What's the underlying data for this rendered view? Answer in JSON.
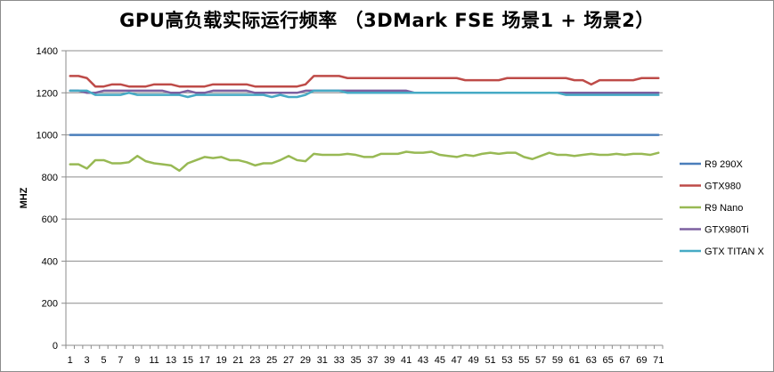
{
  "chart_data": {
    "type": "line",
    "title": "GPU高负载实际运行频率 （3DMark FSE 场景1 + 场景2）",
    "xlabel": "",
    "ylabel": "MHZ",
    "ylim": [
      0,
      1400
    ],
    "yticks": [
      0,
      200,
      400,
      600,
      800,
      1000,
      1200,
      1400
    ],
    "xlim": [
      1,
      71
    ],
    "xticks": [
      1,
      3,
      5,
      7,
      9,
      11,
      13,
      15,
      17,
      19,
      21,
      23,
      25,
      27,
      29,
      31,
      33,
      35,
      37,
      39,
      41,
      43,
      45,
      47,
      49,
      51,
      53,
      55,
      57,
      59,
      61,
      63,
      65,
      67,
      69,
      71
    ],
    "grid": "horizontal",
    "legend": "right",
    "series": [
      {
        "name": "R9 290X",
        "color": "#4a7ebb",
        "values": [
          1000,
          1000,
          1000,
          1000,
          1000,
          1000,
          1000,
          1000,
          1000,
          1000,
          1000,
          1000,
          1000,
          1000,
          1000,
          1000,
          1000,
          1000,
          1000,
          1000,
          1000,
          1000,
          1000,
          1000,
          1000,
          1000,
          1000,
          1000,
          1000,
          1000,
          1000,
          1000,
          1000,
          1000,
          1000,
          1000,
          1000,
          1000,
          1000,
          1000,
          1000,
          1000,
          1000,
          1000,
          1000,
          1000,
          1000,
          1000,
          1000,
          1000,
          1000,
          1000,
          1000,
          1000,
          1000,
          1000,
          1000,
          1000,
          1000,
          1000,
          1000,
          1000,
          1000,
          1000,
          1000,
          1000,
          1000,
          1000,
          1000,
          1000,
          1000
        ]
      },
      {
        "name": "GTX980",
        "color": "#be4b48",
        "values": [
          1280,
          1280,
          1270,
          1230,
          1230,
          1240,
          1240,
          1230,
          1230,
          1230,
          1240,
          1240,
          1240,
          1230,
          1230,
          1230,
          1230,
          1240,
          1240,
          1240,
          1240,
          1240,
          1230,
          1230,
          1230,
          1230,
          1230,
          1230,
          1240,
          1280,
          1280,
          1280,
          1280,
          1270,
          1270,
          1270,
          1270,
          1270,
          1270,
          1270,
          1270,
          1270,
          1270,
          1270,
          1270,
          1270,
          1270,
          1260,
          1260,
          1260,
          1260,
          1260,
          1270,
          1270,
          1270,
          1270,
          1270,
          1270,
          1270,
          1270,
          1260,
          1260,
          1240,
          1260,
          1260,
          1260,
          1260,
          1260,
          1270,
          1270,
          1270
        ]
      },
      {
        "name": "R9 Nano",
        "color": "#98b954",
        "values": [
          860,
          860,
          840,
          880,
          880,
          865,
          865,
          870,
          900,
          875,
          865,
          860,
          855,
          830,
          865,
          880,
          895,
          890,
          895,
          880,
          880,
          870,
          855,
          865,
          865,
          880,
          900,
          880,
          875,
          910,
          905,
          905,
          905,
          910,
          905,
          895,
          895,
          910,
          910,
          910,
          920,
          915,
          915,
          920,
          905,
          900,
          895,
          905,
          900,
          910,
          915,
          910,
          915,
          915,
          895,
          885,
          900,
          915,
          905,
          905,
          900,
          905,
          910,
          905,
          905,
          910,
          905,
          910,
          910,
          905,
          915
        ]
      },
      {
        "name": "GTX980Ti",
        "color": "#7d60a0",
        "values": [
          1210,
          1210,
          1200,
          1200,
          1210,
          1210,
          1210,
          1210,
          1210,
          1210,
          1210,
          1210,
          1200,
          1200,
          1210,
          1200,
          1200,
          1210,
          1210,
          1210,
          1210,
          1210,
          1200,
          1200,
          1200,
          1200,
          1200,
          1200,
          1210,
          1210,
          1210,
          1210,
          1210,
          1210,
          1210,
          1210,
          1210,
          1210,
          1210,
          1210,
          1210,
          1200,
          1200,
          1200,
          1200,
          1200,
          1200,
          1200,
          1200,
          1200,
          1200,
          1200,
          1200,
          1200,
          1200,
          1200,
          1200,
          1200,
          1200,
          1200,
          1200,
          1200,
          1200,
          1200,
          1200,
          1200,
          1200,
          1200,
          1200,
          1200,
          1200
        ]
      },
      {
        "name": "GTX TITAN X",
        "color": "#46aac5",
        "values": [
          1210,
          1210,
          1210,
          1190,
          1190,
          1190,
          1190,
          1200,
          1190,
          1190,
          1190,
          1190,
          1190,
          1190,
          1180,
          1190,
          1190,
          1190,
          1190,
          1190,
          1190,
          1190,
          1190,
          1190,
          1180,
          1190,
          1180,
          1180,
          1190,
          1210,
          1210,
          1210,
          1210,
          1200,
          1200,
          1200,
          1200,
          1200,
          1200,
          1200,
          1200,
          1200,
          1200,
          1200,
          1200,
          1200,
          1200,
          1200,
          1200,
          1200,
          1200,
          1200,
          1200,
          1200,
          1200,
          1200,
          1200,
          1200,
          1200,
          1190,
          1190,
          1190,
          1190,
          1190,
          1190,
          1190,
          1190,
          1190,
          1190,
          1190,
          1190
        ]
      }
    ]
  }
}
